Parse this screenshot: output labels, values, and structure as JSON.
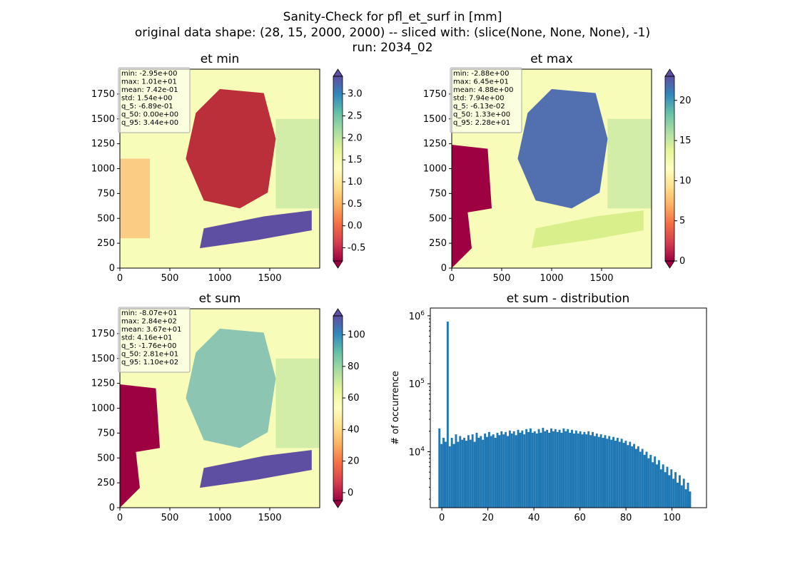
{
  "suptitle": {
    "line1": "Sanity-Check for pfl_et_surf in [mm]",
    "line2": "original data shape: (28, 15, 2000, 2000) -- sliced with: (slice(None, None, None), -1)",
    "line3": "run: 2034_02"
  },
  "panels": [
    {
      "id": "et-min",
      "title": "et min",
      "colorbar": {
        "ticks": [
          "3.0",
          "2.5",
          "2.0",
          "1.5",
          "1.0",
          "0.5",
          "0.0",
          "-0.5"
        ],
        "vmin": -0.8,
        "vmax": 3.4
      },
      "stats": [
        "min: -2.95e+00",
        "max: 1.01e+01",
        "mean: 7.42e-01",
        "std: 1.54e+00",
        "q_5: -6.89e-01",
        "q_50: 0.00e+00",
        "q_95: 3.44e+00"
      ]
    },
    {
      "id": "et-max",
      "title": "et max",
      "colorbar": {
        "ticks": [
          "20",
          "15",
          "10",
          "5",
          "0"
        ],
        "vmin": 0,
        "vmax": 23
      },
      "stats": [
        "min: -2.88e+00",
        "max: 6.45e+01",
        "mean: 4.88e+00",
        "std: 7.94e+00",
        "q_5: -6.13e-02",
        "q_50: 1.33e+00",
        "q_95: 2.28e+01"
      ]
    },
    {
      "id": "et-sum",
      "title": "et sum",
      "colorbar": {
        "ticks": [
          "100",
          "80",
          "60",
          "40",
          "20",
          "0"
        ],
        "vmin": -5,
        "vmax": 112
      },
      "stats": [
        "min: -8.07e+01",
        "max: 2.84e+02",
        "mean: 3.67e+01",
        "std: 4.16e+01",
        "q_5: -1.76e+00",
        "q_50: 2.81e+01",
        "q_95: 1.10e+02"
      ]
    }
  ],
  "map_axes": {
    "xticks": [
      "0",
      "500",
      "1000",
      "1500"
    ],
    "yticks": [
      "0",
      "250",
      "500",
      "750",
      "1000",
      "1250",
      "1500",
      "1750"
    ]
  },
  "colors": {
    "histogram": "#1f77b4",
    "cmap": [
      "#9e0142",
      "#d53e4f",
      "#f46d43",
      "#fdae61",
      "#fee08b",
      "#ffffbf",
      "#e6f598",
      "#abdda4",
      "#66c2a5",
      "#3288bd",
      "#5e4fa2"
    ]
  },
  "chart_data": {
    "type": "bar",
    "title": "et sum - distribution",
    "xlabel": "",
    "ylabel": "# of occurrence",
    "yscale": "log",
    "xlim": [
      -5,
      115
    ],
    "ylim": [
      1500,
      1300000
    ],
    "xticks": [
      "0",
      "20",
      "40",
      "60",
      "80",
      "100"
    ],
    "yticks": [
      "10^6",
      "10^5",
      "10^4"
    ],
    "x_start": -1.5,
    "bin_width": 0.9,
    "values": [
      22000,
      13000,
      16000,
      14000,
      820000,
      12000,
      16000,
      13000,
      18000,
      14000,
      17000,
      15000,
      16000,
      14500,
      17500,
      15000,
      18000,
      14000,
      19000,
      16000,
      17000,
      15000,
      18500,
      16500,
      19500,
      17000,
      18000,
      16000,
      19000,
      17500,
      20000,
      18000,
      19500,
      17000,
      20500,
      18500,
      20000,
      17500,
      21000,
      19000,
      20500,
      18000,
      21500,
      19500,
      22000,
      19000,
      20000,
      18500,
      21500,
      19000,
      22500,
      20000,
      21000,
      19000,
      22000,
      20000,
      21500,
      19500,
      21000,
      19000,
      22000,
      20000,
      21500,
      19000,
      21000,
      18500,
      20500,
      18500,
      20000,
      18000,
      19500,
      18000,
      20000,
      17500,
      19500,
      17000,
      18500,
      16500,
      18000,
      16000,
      17500,
      15500,
      17000,
      15000,
      16500,
      14500,
      16000,
      14000,
      15500,
      13500,
      14500,
      12500,
      14000,
      12000,
      13000,
      11000,
      12000,
      10000,
      11000,
      9000,
      10000,
      8000,
      9000,
      7000,
      8500,
      6500,
      7500,
      5500,
      6500,
      5000,
      6000,
      4500,
      5500,
      4000,
      5000,
      3500,
      4500,
      3200,
      4000,
      2800,
      3500,
      2600
    ]
  }
}
